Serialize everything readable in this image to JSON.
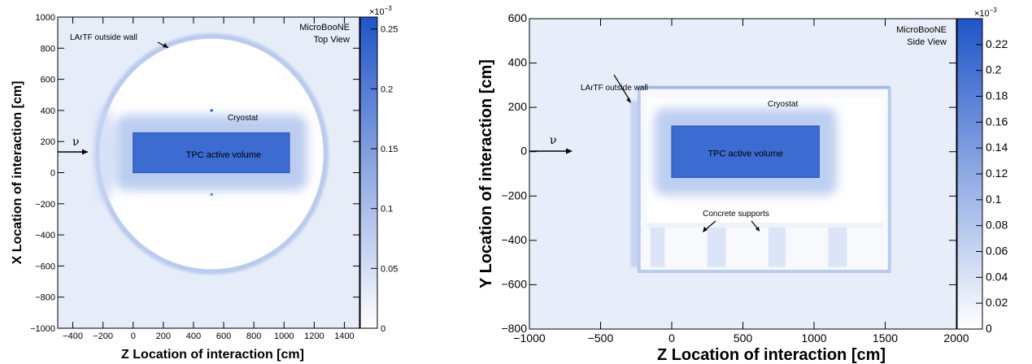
{
  "chart_data": [
    {
      "type": "heatmap",
      "experiment_label": "MicroBooNE",
      "view_label": "Top View",
      "xlabel": "Z Location of interaction [cm]",
      "ylabel": "X Location of interaction [cm]",
      "xlim": [
        -500,
        1500
      ],
      "ylim": [
        -1000,
        1000
      ],
      "x_ticks": [
        -400,
        -200,
        0,
        200,
        400,
        600,
        800,
        1000,
        1200,
        1400
      ],
      "y_ticks": [
        -1000,
        -800,
        -600,
        -400,
        -200,
        0,
        200,
        400,
        600,
        800,
        1000
      ],
      "colorbar": {
        "exponent": "×10",
        "exponent_power": "−3",
        "min": 0,
        "max": 0.26,
        "ticks": [
          "0",
          "0.05",
          "0.1",
          "0.15",
          "0.2",
          "0.25"
        ],
        "tick_values": [
          0,
          0.05,
          0.1,
          0.15,
          0.2,
          0.25
        ],
        "color_low": "#ffffff",
        "color_high": "#1f55c8"
      },
      "annotations": [
        {
          "text": "LArTF outside wall"
        },
        {
          "text": "Cryostat"
        },
        {
          "text": "TPC active volume"
        },
        {
          "text": "ν"
        }
      ],
      "regions": {
        "tpc": {
          "z": [
            0,
            1036
          ],
          "x": [
            0,
            256
          ]
        },
        "lartf_wall": {
          "center_z": 520,
          "center_x": 120,
          "radius_z": 740,
          "radius_x": 740
        }
      }
    },
    {
      "type": "heatmap",
      "experiment_label": "MicroBooNE",
      "view_label": "Side View",
      "xlabel": "Z Location of interaction [cm]",
      "ylabel": "Y Location of interaction [cm]",
      "xlim": [
        -1000,
        2000
      ],
      "ylim": [
        -800,
        600
      ],
      "x_ticks": [
        -1000,
        -500,
        0,
        500,
        1000,
        1500,
        2000
      ],
      "y_ticks": [
        -800,
        -600,
        -400,
        -200,
        0,
        200,
        400,
        600
      ],
      "colorbar": {
        "exponent": "×10",
        "exponent_power": "−3",
        "min": 0,
        "max": 0.24,
        "ticks": [
          "0",
          "0.02",
          "0.04",
          "0.06",
          "0.08",
          "0.1",
          "0.12",
          "0.14",
          "0.16",
          "0.18",
          "0.2",
          "0.22"
        ],
        "tick_values": [
          0,
          0.02,
          0.04,
          0.06,
          0.08,
          0.1,
          0.12,
          0.14,
          0.16,
          0.18,
          0.2,
          0.22
        ],
        "color_low": "#ffffff",
        "color_high": "#1f55c8"
      },
      "annotations": [
        {
          "text": "LArTF outside wall"
        },
        {
          "text": "Cryostat"
        },
        {
          "text": "TPC active volume"
        },
        {
          "text": "Concrete supports"
        },
        {
          "text": "ν"
        }
      ],
      "regions": {
        "tpc": {
          "z": [
            0,
            1036
          ],
          "y": [
            -116,
            116
          ]
        },
        "building": {
          "z": [
            -230,
            1530
          ],
          "y": [
            -540,
            290
          ]
        }
      }
    }
  ]
}
